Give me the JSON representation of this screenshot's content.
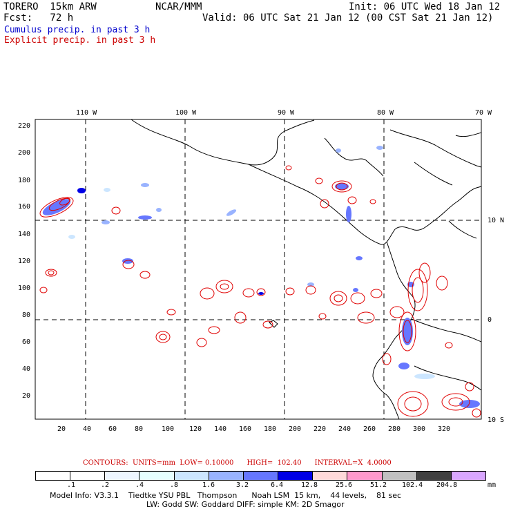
{
  "header": {
    "model": "TORERO  15km ARW",
    "org": "NCAR/MMM",
    "init": "Init: 06 UTC Wed 18 Jan 12",
    "fcst": "Fcst:   72 h",
    "valid": "Valid: 06 UTC Sat 21 Jan 12 (00 CST Sat 21 Jan 12)",
    "field1": "Cumulus precip. in past 3 h",
    "field2": "Explicit precip. in past 3 h"
  },
  "colors": {
    "field1": "#0000cc",
    "field2": "#cc0000"
  },
  "map": {
    "top_lon_labels": [
      "110 W",
      "100 W",
      "90 W",
      "80 W",
      "70 W"
    ],
    "right_lat_labels": [
      "10 N",
      "0",
      "10 S"
    ],
    "y_ticks": [
      "220",
      "200",
      "180",
      "160",
      "140",
      "120",
      "100",
      "80",
      "60",
      "40",
      "20"
    ],
    "x_ticks": [
      "20",
      "40",
      "60",
      "80",
      "100",
      "120",
      "140",
      "160",
      "180",
      "200",
      "220",
      "240",
      "260",
      "280",
      "300",
      "320"
    ]
  },
  "contours": {
    "text": "CONTOURS:  UNITS=mm  LOW= 0.10000      HIGH=  102.40      INTERVAL=X  4.0000"
  },
  "legend": {
    "labels": [
      ".1",
      ".2",
      ".4",
      ".8",
      "1.6",
      "3.2",
      "6.4",
      "12.8",
      "25.6",
      "51.2",
      "102.4",
      "204.8",
      "mm"
    ],
    "colors": [
      "#ffffff",
      "#ffffff",
      "#eef6ff",
      "#e6ffff",
      "#cce6ff",
      "#99b3ff",
      "#6677ff",
      "#0000e6",
      "#ffd9d9",
      "#ff99cc",
      "#c0c0c0",
      "#404040",
      "#d9a6ff"
    ]
  },
  "footer": {
    "line1": "Model Info: V3.3.1    Tiedtke YSU PBL   Thompson      Noah LSM  15 km,    44 levels,    81 sec",
    "line2": "LW: Godd SW: Goddard DIFF: simple KM: 2D Smagor"
  }
}
